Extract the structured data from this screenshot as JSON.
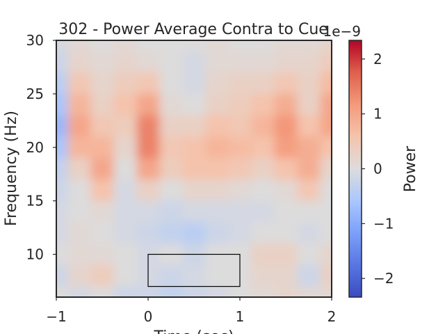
{
  "chart_data": {
    "type": "heatmap",
    "title": "302 - Power Average Contra to Cue",
    "xlabel": "Time (sec)",
    "ylabel": "Frequency (Hz)",
    "xlim": [
      -1,
      2
    ],
    "ylim": [
      6,
      30
    ],
    "xticks": [
      -1,
      0,
      1,
      2
    ],
    "xtick_labels": [
      "−1",
      "0",
      "1",
      "2"
    ],
    "yticks": [
      10,
      15,
      20,
      25,
      30
    ],
    "ytick_labels": [
      "10",
      "15",
      "20",
      "25",
      "30"
    ],
    "colormap": "coolwarm",
    "colorbar": {
      "label": "Power",
      "scale_label": "1e−9",
      "range": [
        -2.34,
        2.34
      ],
      "ticks": [
        -2,
        -1,
        0,
        1,
        2
      ],
      "tick_labels": [
        "−2",
        "−1",
        "0",
        "1",
        "2"
      ]
    },
    "times": [
      -1,
      -0.75,
      -0.5,
      -0.25,
      0,
      0.25,
      0.5,
      0.75,
      1,
      1.25,
      1.5,
      1.75,
      2
    ],
    "frequencies": [
      30,
      28,
      26,
      24,
      22,
      20,
      18,
      16,
      14,
      12,
      10,
      8,
      6
    ],
    "values_units": "1e-9",
    "values": [
      [
        -0.1,
        0.1,
        0,
        0.1,
        0,
        0,
        0,
        0.1,
        0,
        0,
        0.1,
        0.1,
        0.2
      ],
      [
        -0.2,
        0.2,
        0.1,
        0.2,
        0.1,
        0,
        -0.1,
        0.1,
        0.1,
        0.1,
        0.2,
        0.2,
        0.4
      ],
      [
        -0.4,
        0.5,
        0.2,
        0.4,
        0.5,
        0,
        -0.1,
        0.2,
        0.3,
        0.3,
        0.5,
        0.3,
        0.7
      ],
      [
        -0.6,
        0.8,
        0.3,
        0.6,
        1.0,
        0.1,
        0,
        0.3,
        0.4,
        0.6,
        0.9,
        0.3,
        1.0
      ],
      [
        -0.8,
        1.0,
        0.5,
        0.4,
        1.4,
        0.3,
        0.3,
        0.6,
        0.5,
        0.8,
        1.2,
        0.6,
        1.0
      ],
      [
        -0.6,
        0.8,
        0.8,
        0.2,
        1.4,
        0.5,
        0.6,
        0.8,
        0.7,
        0.6,
        1.1,
        0.9,
        0.6
      ],
      [
        -0.3,
        0.3,
        1.0,
        0,
        1.0,
        0.4,
        0.6,
        0.6,
        0.5,
        0.3,
        0.6,
        0.9,
        0.2
      ],
      [
        -0.2,
        0,
        0.6,
        -0.1,
        0.3,
        0,
        0.2,
        0.2,
        0.1,
        0,
        0.1,
        0.5,
        0
      ],
      [
        -0.1,
        0,
        0.1,
        -0.1,
        -0.1,
        -0.2,
        -0.1,
        -0.1,
        -0.1,
        -0.1,
        0,
        0,
        0
      ],
      [
        -0.1,
        0.1,
        0,
        -0.1,
        -0.2,
        -0.3,
        -0.4,
        -0.2,
        -0.1,
        0,
        0,
        -0.1,
        0
      ],
      [
        0,
        0.1,
        0.1,
        0,
        -0.1,
        0,
        -0.2,
        0,
        0,
        0.3,
        0.3,
        0,
        0.2
      ],
      [
        -0.2,
        0.2,
        0.4,
        0,
        -0.1,
        -0.2,
        -0.1,
        0,
        0,
        0.2,
        0.2,
        -0.2,
        0.3
      ],
      [
        0,
        -0.1,
        0,
        -0.2,
        -0.2,
        -0.3,
        -0.2,
        -0.1,
        0,
        0.1,
        0.2,
        0.1,
        0.1
      ]
    ],
    "annotation_rectangle": {
      "time": [
        0,
        1
      ],
      "frequency": [
        7,
        10
      ],
      "color": "#000000"
    },
    "grid": false
  }
}
